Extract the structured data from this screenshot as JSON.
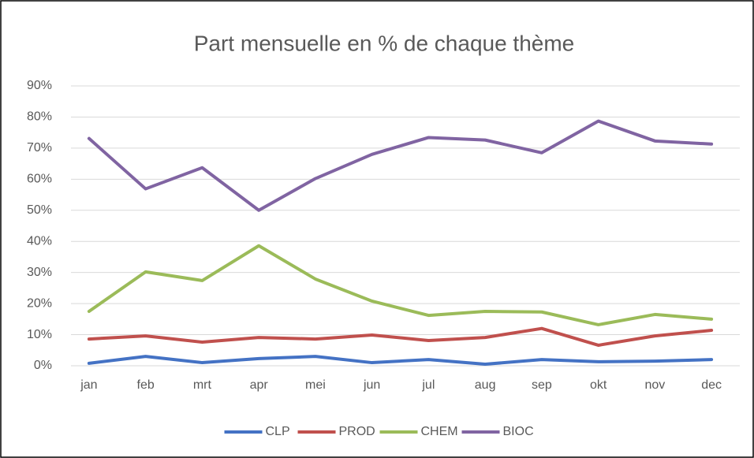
{
  "chart_data": {
    "type": "line",
    "title": "Part mensuelle en % de chaque thème",
    "categories": [
      "jan",
      "feb",
      "mrt",
      "apr",
      "mei",
      "jun",
      "jul",
      "aug",
      "sep",
      "okt",
      "nov",
      "dec"
    ],
    "series": [
      {
        "name": "CLP",
        "color": "#4472c4",
        "values": [
          0.8,
          3,
          1,
          2.3,
          3,
          1,
          2,
          0.5,
          2,
          1.3,
          1.5,
          2
        ]
      },
      {
        "name": "PROD",
        "color": "#c0504d",
        "values": [
          8.6,
          9.6,
          7.6,
          9.1,
          8.6,
          9.9,
          8.1,
          9.1,
          12,
          6.6,
          9.6,
          11.4
        ]
      },
      {
        "name": "CHEM",
        "color": "#9bbb59",
        "values": [
          17.5,
          30.2,
          27.4,
          38.6,
          27.9,
          20.8,
          16.2,
          17.5,
          17.3,
          13.2,
          16.5,
          15
        ]
      },
      {
        "name": "BIOC",
        "color": "#8064a2",
        "values": [
          73.1,
          56.9,
          63.7,
          50,
          60.2,
          68,
          73.4,
          72.6,
          68.5,
          78.7,
          72.3,
          71.3
        ]
      }
    ],
    "ylim": [
      0,
      90
    ],
    "yticks": [
      {
        "value": 0,
        "label": "0%"
      },
      {
        "value": 10,
        "label": "10%"
      },
      {
        "value": 20,
        "label": "20%"
      },
      {
        "value": 30,
        "label": "30%"
      },
      {
        "value": 40,
        "label": "40%"
      },
      {
        "value": 50,
        "label": "50%"
      },
      {
        "value": 60,
        "label": "60%"
      },
      {
        "value": 70,
        "label": "70%"
      },
      {
        "value": 80,
        "label": "80%"
      },
      {
        "value": 90,
        "label": "90%"
      }
    ],
    "grid": true,
    "legend": "bottom"
  }
}
